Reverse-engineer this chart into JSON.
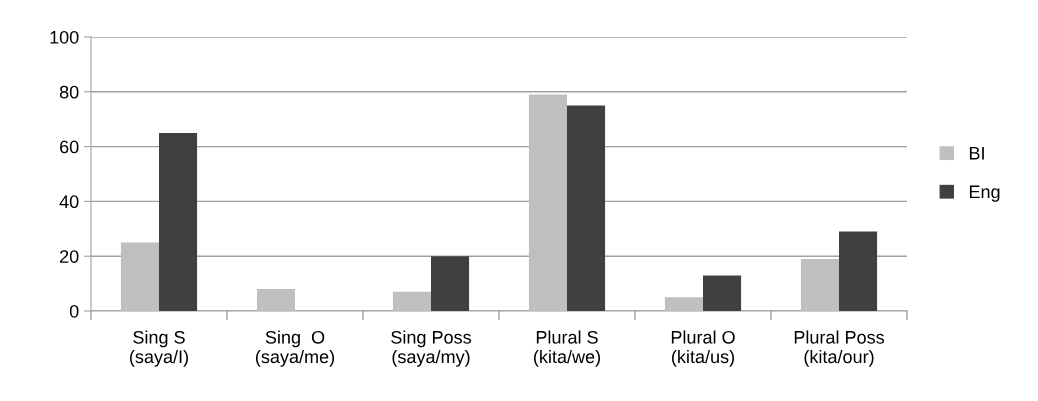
{
  "chart_data": {
    "type": "bar",
    "categories": [
      "Sing S\n(saya/I)",
      "Sing  O\n(saya/me)",
      "Sing Poss\n(saya/my)",
      "Plural S\n(kita/we)",
      "Plural O\n(kita/us)",
      "Plural Poss\n(kita/our)"
    ],
    "series": [
      {
        "name": "BI",
        "color": "#bfbfbf",
        "values": [
          25,
          8,
          7,
          79,
          5,
          19
        ]
      },
      {
        "name": "Eng",
        "color": "#404040",
        "values": [
          65,
          0,
          20,
          75,
          13,
          29
        ]
      }
    ],
    "ylim": [
      0,
      100
    ],
    "yticks": [
      0,
      20,
      40,
      60,
      80,
      100
    ],
    "grid": "y",
    "legend": "right"
  }
}
